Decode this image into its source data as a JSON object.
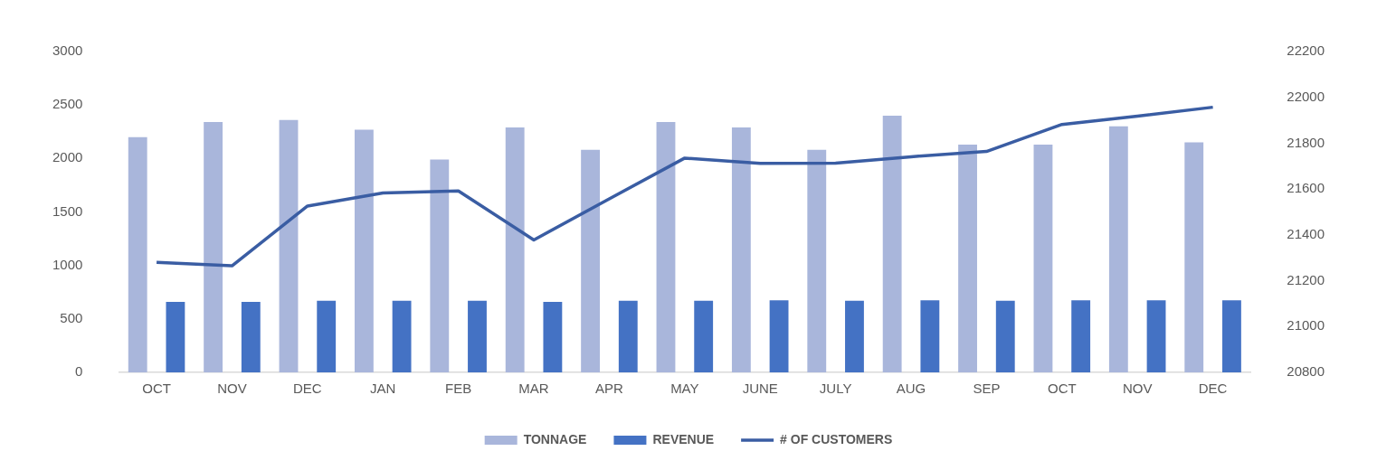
{
  "chart_data": {
    "type": "bar",
    "categories": [
      "OCT",
      "NOV",
      "DEC",
      "JAN",
      "FEB",
      "MAR",
      "APR",
      "MAY",
      "JUNE",
      "JULY",
      "AUG",
      "SEP",
      "OCT",
      "NOV",
      "DEC"
    ],
    "series": [
      {
        "name": "TONNAGE",
        "color": "#a9b6db",
        "values": [
          2200,
          2340,
          2360,
          2270,
          1990,
          2290,
          2080,
          2340,
          2290,
          2080,
          2400,
          2130,
          2130,
          2300,
          2150
        ]
      },
      {
        "name": "REVENUE",
        "color": "#4472c4",
        "values": [
          660,
          660,
          670,
          670,
          670,
          660,
          670,
          670,
          675,
          670,
          675,
          670,
          675,
          675,
          675
        ]
      },
      {
        "name": "# OF CUSTOMERS",
        "type": "line",
        "axis": "y2",
        "color": "#3a5da3",
        "values": [
          21280,
          21265,
          21526,
          21583,
          21592,
          21378,
          21557,
          21735,
          21712,
          21713,
          21741,
          21764,
          21882,
          21918,
          21957
        ]
      }
    ],
    "ylim": [
      0,
      3000
    ],
    "yticks": [
      0,
      500,
      1000,
      1500,
      2000,
      2500,
      3000
    ],
    "y2lim": [
      20800,
      22200
    ],
    "y2ticks": [
      20800,
      21000,
      21200,
      21400,
      21600,
      21800,
      22000,
      22200
    ],
    "grid": false,
    "legend": "bottom",
    "marker": "none"
  }
}
